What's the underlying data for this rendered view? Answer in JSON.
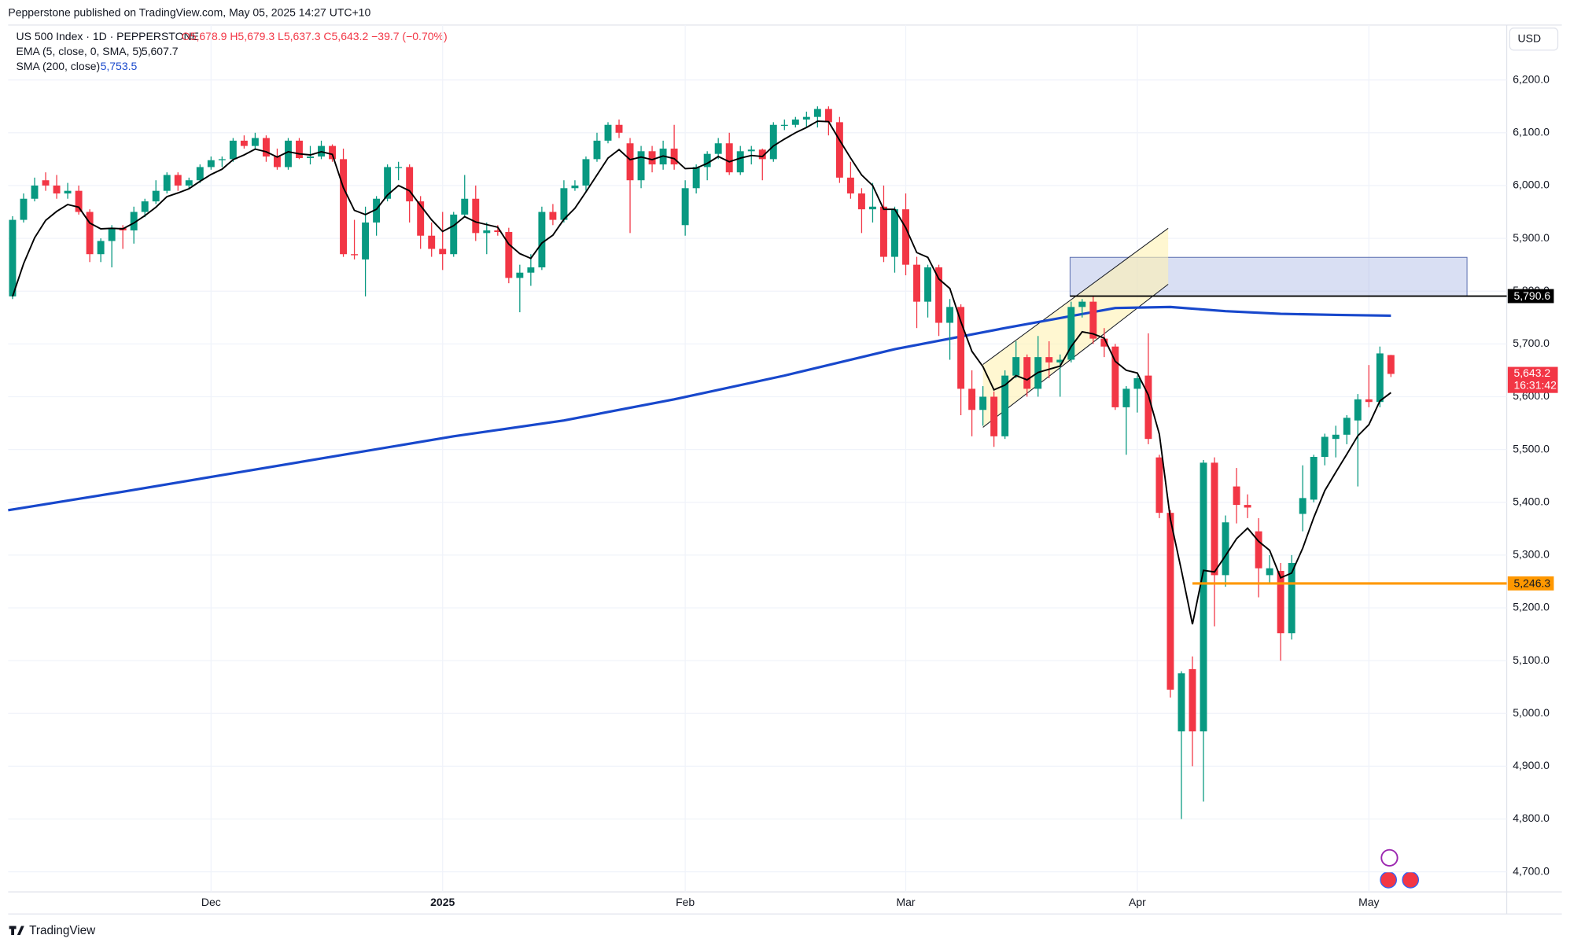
{
  "header": {
    "publisher": "Pepperstone published on TradingView.com, May 05, 2025 14:27 UTC+10",
    "logo": "TradingView"
  },
  "chart_data": {
    "type": "candlestick",
    "symbol": "US 500 Index · 1D · PEPPERSTONE",
    "ohlc_label": "O5,678.9 H5,679.3 L5,637.3 C5,643.2 −39.7 (−0.70%)",
    "currency": "USD",
    "up_color": "#089981",
    "down_color": "#f23645",
    "candles": [
      [
        5790,
        5942,
        5785,
        5935
      ],
      [
        5935,
        5985,
        5930,
        5975
      ],
      [
        5975,
        6015,
        5970,
        6000
      ],
      [
        6010,
        6025,
        5990,
        6000
      ],
      [
        6000,
        6020,
        5975,
        5985
      ],
      [
        5985,
        6005,
        5975,
        5990
      ],
      [
        5990,
        6000,
        5945,
        5950
      ],
      [
        5950,
        5955,
        5855,
        5870
      ],
      [
        5870,
        5900,
        5855,
        5895
      ],
      [
        5895,
        5925,
        5845,
        5920
      ],
      [
        5920,
        5925,
        5880,
        5915
      ],
      [
        5915,
        5960,
        5890,
        5950
      ],
      [
        5950,
        5975,
        5940,
        5970
      ],
      [
        5970,
        6010,
        5965,
        5990
      ],
      [
        5990,
        6025,
        5985,
        6020
      ],
      [
        6020,
        6025,
        5990,
        6000
      ],
      [
        6000,
        6015,
        5995,
        6010
      ],
      [
        6010,
        6040,
        6005,
        6035
      ],
      [
        6035,
        6055,
        6030,
        6048
      ],
      [
        6048,
        6055,
        6035,
        6050
      ],
      [
        6050,
        6090,
        6045,
        6085
      ],
      [
        6085,
        6095,
        6070,
        6075
      ],
      [
        6075,
        6100,
        6070,
        6090
      ],
      [
        6090,
        6095,
        6045,
        6055
      ],
      [
        6055,
        6070,
        6030,
        6035
      ],
      [
        6035,
        6090,
        6030,
        6085
      ],
      [
        6085,
        6090,
        6050,
        6052
      ],
      [
        6052,
        6075,
        6040,
        6055
      ],
      [
        6055,
        6085,
        6050,
        6075
      ],
      [
        6075,
        6078,
        6045,
        6050
      ],
      [
        6050,
        6070,
        5865,
        5870
      ],
      [
        5870,
        5935,
        5860,
        5868
      ],
      [
        5860,
        5960,
        5790,
        5930
      ],
      [
        5930,
        5980,
        5905,
        5975
      ],
      [
        5975,
        6040,
        5970,
        6035
      ],
      [
        6035,
        6045,
        6010,
        6035
      ],
      [
        6035,
        6040,
        5930,
        5970
      ],
      [
        5970,
        5980,
        5880,
        5905
      ],
      [
        5905,
        5930,
        5865,
        5880
      ],
      [
        5880,
        5950,
        5840,
        5870
      ],
      [
        5870,
        5950,
        5865,
        5945
      ],
      [
        5945,
        6020,
        5940,
        5975
      ],
      [
        5975,
        6000,
        5895,
        5910
      ],
      [
        5910,
        5930,
        5870,
        5915
      ],
      [
        5915,
        5925,
        5905,
        5912
      ],
      [
        5912,
        5920,
        5815,
        5825
      ],
      [
        5825,
        5850,
        5760,
        5835
      ],
      [
        5835,
        5870,
        5810,
        5845
      ],
      [
        5845,
        5960,
        5840,
        5950
      ],
      [
        5950,
        5965,
        5925,
        5935
      ],
      [
        5935,
        6010,
        5930,
        5995
      ],
      [
        5995,
        6010,
        5990,
        6000
      ],
      [
        6000,
        6055,
        5990,
        6050
      ],
      [
        6050,
        6100,
        6045,
        6085
      ],
      [
        6085,
        6120,
        6080,
        6115
      ],
      [
        6115,
        6125,
        6090,
        6100
      ],
      [
        6080,
        6090,
        5910,
        6010
      ],
      [
        6010,
        6075,
        5995,
        6065
      ],
      [
        6065,
        6075,
        6025,
        6040
      ],
      [
        6040,
        6085,
        6030,
        6070
      ],
      [
        6070,
        6115,
        6030,
        6040
      ],
      [
        5925,
        6010,
        5905,
        5995
      ],
      [
        5995,
        6040,
        5985,
        6035
      ],
      [
        6035,
        6065,
        6010,
        6060
      ],
      [
        6060,
        6090,
        6050,
        6080
      ],
      [
        6080,
        6100,
        6020,
        6025
      ],
      [
        6025,
        6075,
        6020,
        6065
      ],
      [
        6065,
        6075,
        6040,
        6068
      ],
      [
        6068,
        6070,
        6010,
        6050
      ],
      [
        6050,
        6120,
        6045,
        6115
      ],
      [
        6115,
        6125,
        6105,
        6115
      ],
      [
        6115,
        6130,
        6110,
        6125
      ],
      [
        6125,
        6140,
        6110,
        6130
      ],
      [
        6130,
        6150,
        6110,
        6145
      ],
      [
        6145,
        6150,
        6095,
        6120
      ],
      [
        6120,
        6130,
        6005,
        6015
      ],
      [
        6015,
        6045,
        5975,
        5985
      ],
      [
        5985,
        5995,
        5910,
        5955
      ],
      [
        5955,
        6005,
        5930,
        5960
      ],
      [
        5960,
        6000,
        5855,
        5865
      ],
      [
        5865,
        5960,
        5835,
        5955
      ],
      [
        5955,
        5985,
        5830,
        5850
      ],
      [
        5850,
        5865,
        5730,
        5780
      ],
      [
        5780,
        5850,
        5750,
        5845
      ],
      [
        5845,
        5850,
        5715,
        5740
      ],
      [
        5740,
        5785,
        5670,
        5770
      ],
      [
        5770,
        5775,
        5565,
        5615
      ],
      [
        5615,
        5650,
        5525,
        5575
      ],
      [
        5575,
        5620,
        5545,
        5600
      ],
      [
        5600,
        5610,
        5505,
        5525
      ],
      [
        5525,
        5650,
        5520,
        5640
      ],
      [
        5640,
        5705,
        5635,
        5675
      ],
      [
        5675,
        5680,
        5600,
        5615
      ],
      [
        5615,
        5715,
        5600,
        5675
      ],
      [
        5675,
        5705,
        5635,
        5665
      ],
      [
        5665,
        5680,
        5600,
        5670
      ],
      [
        5670,
        5780,
        5665,
        5770
      ],
      [
        5770,
        5785,
        5750,
        5780
      ],
      [
        5780,
        5790,
        5700,
        5710
      ],
      [
        5710,
        5730,
        5675,
        5695
      ],
      [
        5695,
        5700,
        5575,
        5580
      ],
      [
        5580,
        5620,
        5490,
        5615
      ],
      [
        5615,
        5640,
        5570,
        5635
      ],
      [
        5640,
        5720,
        5510,
        5520
      ],
      [
        5485,
        5490,
        5370,
        5380
      ],
      [
        5380,
        5385,
        5030,
        5045
      ],
      [
        4966,
        5080,
        4800,
        5076
      ],
      [
        5084,
        5108,
        4900,
        4966
      ],
      [
        4966,
        5480,
        4833,
        5475
      ],
      [
        5475,
        5485,
        5165,
        5262
      ],
      [
        5262,
        5375,
        5240,
        5362
      ],
      [
        5430,
        5465,
        5360,
        5395
      ],
      [
        5395,
        5415,
        5370,
        5390
      ],
      [
        5345,
        5370,
        5220,
        5275
      ],
      [
        5262,
        5300,
        5245,
        5275
      ],
      [
        5270,
        5285,
        5100,
        5152
      ],
      [
        5152,
        5300,
        5140,
        5285
      ],
      [
        5378,
        5470,
        5345,
        5408
      ],
      [
        5405,
        5490,
        5400,
        5486
      ],
      [
        5486,
        5530,
        5470,
        5524
      ],
      [
        5520,
        5545,
        5485,
        5528
      ],
      [
        5528,
        5565,
        5510,
        5560
      ],
      [
        5555,
        5605,
        5430,
        5595
      ],
      [
        5595,
        5660,
        5580,
        5590
      ],
      [
        5590,
        5695,
        5580,
        5682
      ],
      [
        5678.9,
        5679.3,
        5637.3,
        5643.2
      ]
    ],
    "indicators": [
      {
        "name": "EMA (5, close, 0, SMA, 5)",
        "value_label": "5,607.7",
        "color": "#000000",
        "values": [
          5790,
          5852,
          5901,
          5934,
          5951,
          5964,
          5959,
          5929,
          5918,
          5919,
          5918,
          5929,
          5943,
          5959,
          5979,
          5986,
          5994,
          6008,
          6021,
          6031,
          6049,
          6058,
          6069,
          6064,
          6054,
          6064,
          6060,
          6058,
          6064,
          6059,
          5996,
          5953,
          5945,
          5955,
          5982,
          6000,
          5990,
          5962,
          5935,
          5913,
          5924,
          5941,
          5931,
          5926,
          5921,
          5889,
          5871,
          5862,
          5891,
          5906,
          5936,
          5957,
          5988,
          6020,
          6052,
          6068,
          6049,
          6054,
          6049,
          6056,
          6051,
          6032,
          6033,
          6042,
          6055,
          6045,
          6052,
          6057,
          6055,
          6075,
          6088,
          6100,
          6110,
          6122,
          6121,
          6086,
          6052,
          6020,
          6000,
          5955,
          5955,
          5920,
          5873,
          5864,
          5823,
          5805,
          5742,
          5686,
          5657,
          5613,
          5622,
          5640,
          5632,
          5646,
          5652,
          5658,
          5695,
          5723,
          5719,
          5711,
          5667,
          5650,
          5645,
          5603,
          5529,
          5368,
          5271,
          5169,
          5271,
          5268,
          5299,
          5331,
          5351,
          5326,
          5309,
          5257,
          5266,
          5313,
          5371,
          5422,
          5457,
          5491,
          5526,
          5547,
          5592,
          5607.7
        ]
      },
      {
        "name": "SMA (200, close)",
        "value_label": "5,753.5",
        "color": "#1848cc",
        "x": [
          -0.4,
          10,
          20,
          30,
          40,
          50,
          60,
          70,
          80,
          90,
          100,
          105,
          110,
          115,
          120,
          125
        ],
        "values": [
          5385,
          5420,
          5455,
          5490,
          5525,
          5555,
          5595,
          5640,
          5690,
          5730,
          5768,
          5770,
          5762,
          5757,
          5755,
          5753.5
        ]
      }
    ],
    "xlim": [
      -0.4,
      135.5
    ],
    "ylim": [
      4662,
      6304
    ],
    "xticks": [
      {
        "value": 18,
        "label": "Dec"
      },
      {
        "value": 39,
        "label": "2025"
      },
      {
        "value": 61,
        "label": "Feb"
      },
      {
        "value": 81,
        "label": "Mar"
      },
      {
        "value": 102,
        "label": "Apr"
      },
      {
        "value": 123,
        "label": "May"
      }
    ],
    "yticks": [
      {
        "value": 4700,
        "label": "4,700.0"
      },
      {
        "value": 4800,
        "label": "4,800.0"
      },
      {
        "value": 4900,
        "label": "4,900.0"
      },
      {
        "value": 5000,
        "label": "5,000.0"
      },
      {
        "value": 5100,
        "label": "5,100.0"
      },
      {
        "value": 5200,
        "label": "5,200.0"
      },
      {
        "value": 5300,
        "label": "5,300.0"
      },
      {
        "value": 5400,
        "label": "5,400.0"
      },
      {
        "value": 5500,
        "label": "5,500.0"
      },
      {
        "value": 5600,
        "label": "5,600.0"
      },
      {
        "value": 5700,
        "label": "5,700.0"
      },
      {
        "value": 5800,
        "label": "5,800.0"
      },
      {
        "value": 5900,
        "label": "5,900.0"
      },
      {
        "value": 6000,
        "label": "6,000.0"
      },
      {
        "value": 6100,
        "label": "6,100.0"
      },
      {
        "value": 6200,
        "label": "6,200.0"
      }
    ],
    "grid": true,
    "zone": {
      "x": [
        95.9,
        131.9
      ],
      "y": [
        5790.6,
        5864
      ],
      "color": "#9fb0e0"
    },
    "channel": {
      "x": [
        88,
        104.8
      ],
      "lower": [
        5542,
        5813
      ],
      "upper": [
        5661,
        5919
      ],
      "color": "#fff2b3"
    },
    "levels": [
      {
        "value": 5790.6,
        "label": "5,790.6",
        "color": "#000000",
        "start": 95.9
      },
      {
        "value": 5246.3,
        "label": "5,246.3",
        "color": "#ff9800",
        "start": 107
      }
    ],
    "last": {
      "value": 5643.2,
      "label": "5,643.2",
      "countdown": "16:31:42"
    }
  }
}
